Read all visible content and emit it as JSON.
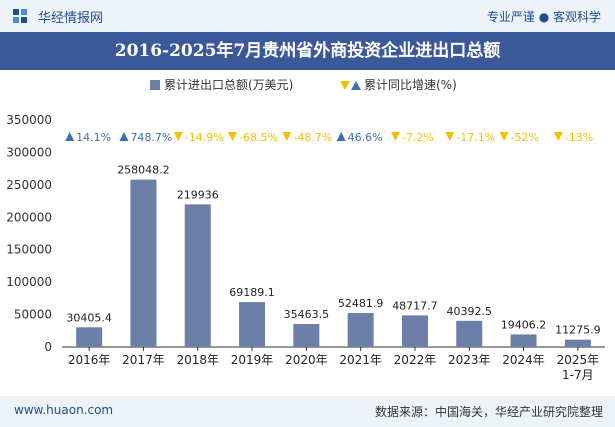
{
  "header": {
    "brand": "华经情报网",
    "slogan": "专业严谨 ● 客观科学"
  },
  "title": "2016-2025年7月贵州省外商投资企业进出口总额",
  "legend": {
    "bar_label": "累计进出口总额(万美元)",
    "growth_label": "累计同比增速(%)"
  },
  "colors": {
    "bar": "#6b7fa8",
    "up": "#3b6fb6",
    "down": "#f2c200",
    "titlebar": "#3b5998"
  },
  "chart_data": {
    "type": "bar",
    "categories": [
      "2016年",
      "2017年",
      "2018年",
      "2019年",
      "2020年",
      "2021年",
      "2022年",
      "2023年",
      "2024年",
      "2025年\n1-7月"
    ],
    "values": [
      30405.4,
      258048.2,
      219936,
      69189.1,
      35463.5,
      52481.9,
      48717.7,
      40392.5,
      19406.2,
      11275.9
    ],
    "value_labels": [
      "30405.4",
      "258048.2",
      "219936",
      "69189.1",
      "35463.5",
      "52481.9",
      "48717.7",
      "40392.5",
      "19406.2",
      "11275.9"
    ],
    "growth": [
      14.1,
      748.7,
      -14.9,
      -68.5,
      -48.7,
      46.6,
      -7.2,
      -17.1,
      -52,
      -13
    ],
    "growth_labels": [
      "14.1%",
      "748.7%",
      "-14.9%",
      "-68.5%",
      "-48.7%",
      "46.6%",
      "-7.2%",
      "-17.1%",
      "-52%",
      "-13%"
    ],
    "y_ticks": [
      0,
      50000,
      100000,
      150000,
      200000,
      250000,
      300000,
      350000
    ],
    "ylim": [
      0,
      350000
    ],
    "grid": false
  },
  "footer": {
    "site": "www.huaon.com",
    "source": "数据来源：中国海关，华经产业研究院整理"
  }
}
